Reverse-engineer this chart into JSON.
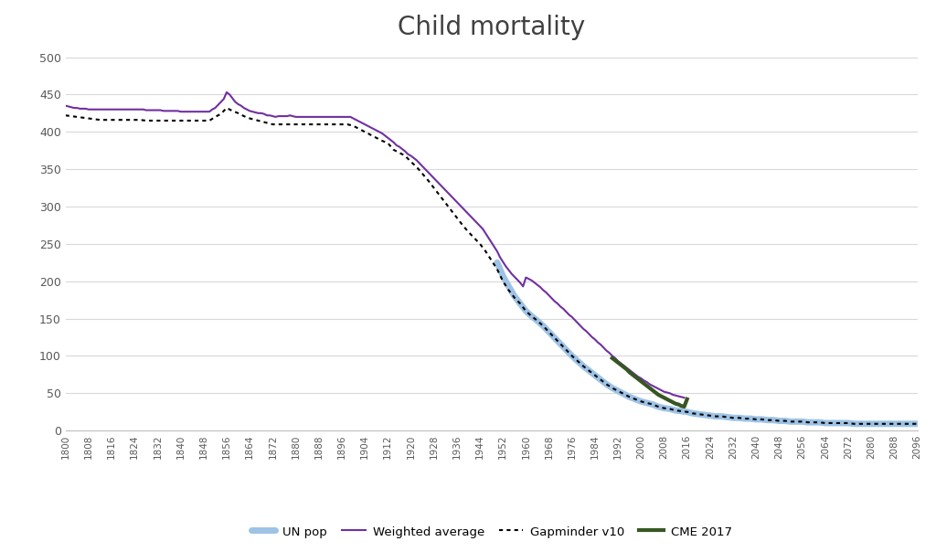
{
  "title": "Child mortality",
  "title_fontsize": 20,
  "title_color": "#404040",
  "background_color": "#ffffff",
  "ylim": [
    0,
    510
  ],
  "yticks": [
    0,
    50,
    100,
    150,
    200,
    250,
    300,
    350,
    400,
    450,
    500
  ],
  "grid_color": "#d9d9d9",
  "legend_labels": [
    "UN pop",
    "Weighted average",
    "Gapminder v10",
    "CME 2017"
  ],
  "series_colors": {
    "un_pop": "#9DC3E6",
    "weighted_avg": "#7030A0",
    "gapminder": "#000000",
    "cme": "#375623"
  },
  "weighted_avg_data": {
    "years": [
      1800,
      1801,
      1802,
      1803,
      1804,
      1805,
      1806,
      1807,
      1808,
      1809,
      1810,
      1811,
      1812,
      1813,
      1814,
      1815,
      1816,
      1817,
      1818,
      1819,
      1820,
      1821,
      1822,
      1823,
      1824,
      1825,
      1826,
      1827,
      1828,
      1829,
      1830,
      1831,
      1832,
      1833,
      1834,
      1835,
      1836,
      1837,
      1838,
      1839,
      1840,
      1841,
      1842,
      1843,
      1844,
      1845,
      1846,
      1847,
      1848,
      1849,
      1850,
      1851,
      1852,
      1853,
      1854,
      1855,
      1856,
      1857,
      1858,
      1859,
      1860,
      1861,
      1862,
      1863,
      1864,
      1865,
      1866,
      1867,
      1868,
      1869,
      1870,
      1871,
      1872,
      1873,
      1874,
      1875,
      1876,
      1877,
      1878,
      1879,
      1880,
      1881,
      1882,
      1883,
      1884,
      1885,
      1886,
      1887,
      1888,
      1889,
      1890,
      1891,
      1892,
      1893,
      1894,
      1895,
      1896,
      1897,
      1898,
      1899,
      1900,
      1901,
      1902,
      1903,
      1904,
      1905,
      1906,
      1907,
      1908,
      1909,
      1910,
      1911,
      1912,
      1913,
      1914,
      1915,
      1916,
      1917,
      1918,
      1919,
      1920,
      1921,
      1922,
      1923,
      1924,
      1925,
      1926,
      1927,
      1928,
      1929,
      1930,
      1931,
      1932,
      1933,
      1934,
      1935,
      1936,
      1937,
      1938,
      1939,
      1940,
      1941,
      1942,
      1943,
      1944,
      1945,
      1946,
      1947,
      1948,
      1949,
      1950,
      1951,
      1952,
      1953,
      1954,
      1955,
      1956,
      1957,
      1958,
      1959,
      1960,
      1961,
      1962,
      1963,
      1964,
      1965,
      1966,
      1967,
      1968,
      1969,
      1970,
      1971,
      1972,
      1973,
      1974,
      1975,
      1976,
      1977,
      1978,
      1979,
      1980,
      1981,
      1982,
      1983,
      1984,
      1985,
      1986,
      1987,
      1988,
      1989,
      1990,
      1991,
      1992,
      1993,
      1994,
      1995,
      1996,
      1997,
      1998,
      1999,
      2000,
      2001,
      2002,
      2003,
      2004,
      2005,
      2006,
      2007,
      2008,
      2009,
      2010,
      2011,
      2012,
      2013,
      2014,
      2015
    ],
    "values": [
      435,
      434,
      433,
      432,
      432,
      431,
      431,
      431,
      430,
      430,
      430,
      430,
      430,
      430,
      430,
      430,
      430,
      430,
      430,
      430,
      430,
      430,
      430,
      430,
      430,
      430,
      430,
      430,
      429,
      429,
      429,
      429,
      429,
      429,
      428,
      428,
      428,
      428,
      428,
      428,
      427,
      427,
      427,
      427,
      427,
      427,
      427,
      427,
      427,
      427,
      427,
      430,
      432,
      436,
      440,
      444,
      453,
      450,
      445,
      440,
      437,
      435,
      432,
      430,
      428,
      427,
      426,
      425,
      425,
      424,
      422,
      422,
      421,
      420,
      421,
      421,
      421,
      421,
      422,
      421,
      420,
      420,
      420,
      420,
      420,
      420,
      420,
      420,
      420,
      420,
      420,
      420,
      420,
      420,
      420,
      420,
      420,
      420,
      420,
      420,
      418,
      416,
      414,
      412,
      410,
      408,
      406,
      404,
      402,
      400,
      398,
      395,
      392,
      389,
      386,
      382,
      380,
      377,
      374,
      370,
      368,
      365,
      362,
      358,
      354,
      350,
      346,
      342,
      338,
      334,
      330,
      326,
      322,
      318,
      314,
      310,
      306,
      302,
      298,
      294,
      290,
      286,
      282,
      278,
      274,
      270,
      264,
      258,
      252,
      246,
      240,
      232,
      226,
      220,
      215,
      210,
      206,
      202,
      198,
      193,
      205,
      203,
      201,
      198,
      195,
      192,
      188,
      185,
      181,
      177,
      173,
      170,
      166,
      163,
      159,
      155,
      152,
      148,
      144,
      140,
      136,
      133,
      129,
      125,
      122,
      118,
      115,
      111,
      107,
      104,
      100,
      97,
      93,
      90,
      87,
      84,
      81,
      78,
      75,
      72,
      70,
      67,
      65,
      62,
      60,
      58,
      56,
      54,
      52,
      51,
      50,
      48,
      47,
      46,
      45,
      44
    ]
  },
  "gapminder_data": {
    "years": [
      1800,
      1802,
      1804,
      1806,
      1808,
      1810,
      1812,
      1814,
      1816,
      1818,
      1820,
      1822,
      1824,
      1826,
      1828,
      1830,
      1832,
      1834,
      1836,
      1838,
      1840,
      1842,
      1844,
      1846,
      1848,
      1850,
      1852,
      1854,
      1856,
      1858,
      1860,
      1862,
      1864,
      1866,
      1868,
      1870,
      1872,
      1874,
      1876,
      1878,
      1880,
      1882,
      1884,
      1886,
      1888,
      1890,
      1892,
      1894,
      1896,
      1898,
      1900,
      1902,
      1904,
      1906,
      1908,
      1910,
      1912,
      1914,
      1916,
      1918,
      1920,
      1922,
      1924,
      1926,
      1928,
      1930,
      1932,
      1934,
      1936,
      1938,
      1940,
      1942,
      1944,
      1946,
      1948,
      1950,
      1952,
      1954,
      1956,
      1958,
      1960,
      1962,
      1964,
      1966,
      1968,
      1970,
      1972,
      1974,
      1976,
      1978,
      1980,
      1982,
      1984,
      1986,
      1988,
      1990,
      1992,
      1994,
      1996,
      1998,
      2000,
      2002,
      2004,
      2006,
      2008,
      2010,
      2012,
      2014,
      2016,
      2018,
      2020,
      2022,
      2024,
      2026,
      2028,
      2030,
      2032,
      2034,
      2036,
      2038,
      2040,
      2042,
      2044,
      2046,
      2048,
      2050,
      2052,
      2054,
      2056,
      2058,
      2060,
      2062,
      2064,
      2066,
      2068,
      2070,
      2072,
      2074,
      2076,
      2078,
      2080,
      2082,
      2084,
      2086,
      2088,
      2090,
      2092,
      2094,
      2096
    ],
    "values": [
      422,
      421,
      420,
      419,
      418,
      417,
      416,
      416,
      416,
      416,
      416,
      416,
      416,
      416,
      415,
      415,
      415,
      415,
      415,
      415,
      415,
      415,
      415,
      415,
      415,
      415,
      420,
      424,
      432,
      428,
      425,
      421,
      418,
      416,
      414,
      412,
      410,
      410,
      410,
      410,
      410,
      410,
      410,
      410,
      410,
      410,
      410,
      410,
      410,
      410,
      408,
      404,
      400,
      396,
      392,
      388,
      385,
      376,
      372,
      368,
      360,
      353,
      344,
      335,
      325,
      315,
      305,
      295,
      285,
      275,
      266,
      258,
      250,
      240,
      228,
      216,
      200,
      188,
      178,
      170,
      160,
      153,
      147,
      140,
      132,
      124,
      116,
      108,
      100,
      93,
      86,
      80,
      74,
      68,
      62,
      57,
      53,
      49,
      45,
      42,
      39,
      37,
      35,
      32,
      30,
      29,
      27,
      26,
      25,
      23,
      22,
      21,
      20,
      19,
      19,
      18,
      17,
      17,
      16,
      16,
      15,
      15,
      14,
      14,
      13,
      13,
      12,
      12,
      12,
      11,
      11,
      11,
      10,
      10,
      10,
      10,
      10,
      9,
      9,
      9,
      9,
      9,
      9,
      9,
      9,
      9,
      9,
      9,
      9
    ]
  },
  "un_pop_data": {
    "years": [
      1950,
      1952,
      1954,
      1956,
      1958,
      1960,
      1962,
      1964,
      1966,
      1968,
      1970,
      1972,
      1974,
      1976,
      1978,
      1980,
      1982,
      1984,
      1986,
      1988,
      1990,
      1992,
      1994,
      1996,
      1998,
      2000,
      2002,
      2004,
      2006,
      2008,
      2010,
      2012,
      2014,
      2016,
      2018,
      2020,
      2022,
      2024,
      2026,
      2028,
      2030,
      2032,
      2034,
      2036,
      2038,
      2040,
      2042,
      2044,
      2046,
      2048,
      2050,
      2052,
      2054,
      2056,
      2058,
      2060,
      2062,
      2064,
      2066,
      2068,
      2070,
      2072,
      2074,
      2076,
      2078,
      2080,
      2082,
      2084,
      2086,
      2088,
      2090,
      2092,
      2094,
      2096
    ],
    "values": [
      225,
      207,
      193,
      180,
      170,
      160,
      153,
      147,
      140,
      132,
      124,
      116,
      108,
      100,
      93,
      86,
      80,
      74,
      68,
      62,
      57,
      53,
      49,
      45,
      42,
      39,
      37,
      35,
      32,
      30,
      29,
      27,
      26,
      25,
      23,
      22,
      21,
      20,
      19,
      19,
      18,
      17,
      17,
      16,
      16,
      15,
      15,
      14,
      14,
      13,
      13,
      12,
      12,
      12,
      11,
      11,
      11,
      10,
      10,
      10,
      10,
      10,
      9,
      9,
      9,
      9,
      9,
      9,
      9,
      9,
      9,
      9,
      9,
      9
    ]
  },
  "cme_data": {
    "years": [
      1990,
      1991,
      1992,
      1993,
      1994,
      1995,
      1996,
      1997,
      1998,
      1999,
      2000,
      2001,
      2002,
      2003,
      2004,
      2005,
      2006,
      2007,
      2008,
      2009,
      2010,
      2011,
      2012,
      2013,
      2014,
      2015,
      2016
    ],
    "values": [
      97,
      94,
      91,
      88,
      85,
      82,
      78,
      75,
      72,
      69,
      66,
      63,
      60,
      57,
      54,
      51,
      48,
      46,
      44,
      42,
      40,
      38,
      36,
      35,
      33,
      32,
      42
    ]
  }
}
